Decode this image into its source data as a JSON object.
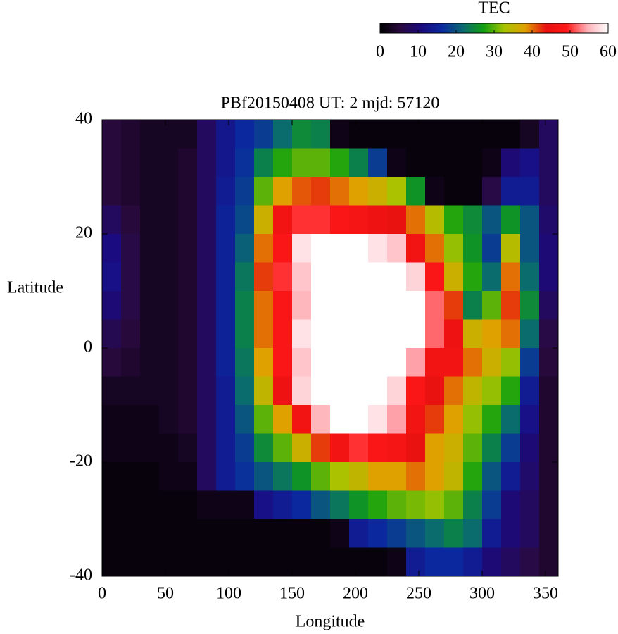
{
  "chart_data": {
    "type": "heatmap",
    "title": "PBf20150408  UT: 2  mjd: 57120",
    "xlabel": "Longitude",
    "ylabel": "Latitude",
    "x": [
      7.5,
      22.5,
      37.5,
      52.5,
      67.5,
      82.5,
      97.5,
      112.5,
      127.5,
      142.5,
      157.5,
      172.5,
      187.5,
      202.5,
      217.5,
      232.5,
      247.5,
      262.5,
      277.5,
      292.5,
      307.5,
      322.5,
      337.5,
      352.5
    ],
    "y": [
      37.5,
      32.5,
      27.5,
      22.5,
      17.5,
      12.5,
      7.5,
      2.5,
      -2.5,
      -7.5,
      -12.5,
      -17.5,
      -22.5,
      -27.5,
      -32.5,
      -37.5
    ],
    "values": [
      [
        5,
        4,
        3,
        3,
        3,
        8,
        13,
        16,
        18,
        22,
        25,
        24,
        2,
        1,
        1,
        1,
        1,
        1,
        1,
        1,
        1,
        1,
        3,
        8
      ],
      [
        5,
        4,
        3,
        3,
        4,
        8,
        13,
        17,
        24,
        28,
        30,
        30,
        28,
        24,
        18,
        2,
        1,
        1,
        1,
        1,
        2,
        10,
        12,
        8
      ],
      [
        5,
        4,
        3,
        3,
        4,
        8,
        14,
        18,
        30,
        38,
        41,
        42,
        40,
        38,
        36,
        33,
        26,
        2,
        1,
        1,
        6,
        14,
        14,
        8
      ],
      [
        8,
        5,
        3,
        3,
        4,
        8,
        15,
        19,
        36,
        46,
        50,
        50,
        48,
        47,
        45,
        44,
        40,
        34,
        28,
        25,
        20,
        26,
        20,
        9
      ],
      [
        11,
        6,
        3,
        3,
        4,
        8,
        15,
        21,
        40,
        48,
        58,
        60,
        60,
        60,
        58,
        56,
        46,
        40,
        32,
        26,
        18,
        34,
        20,
        10
      ],
      [
        12,
        6,
        3,
        3,
        4,
        8,
        15,
        23,
        42,
        50,
        56,
        60,
        60,
        60,
        60,
        60,
        57,
        48,
        36,
        28,
        22,
        40,
        22,
        10
      ],
      [
        10,
        6,
        3,
        3,
        4,
        8,
        15,
        24,
        40,
        48,
        55,
        60,
        60,
        60,
        60,
        60,
        60,
        52,
        42,
        24,
        30,
        42,
        25,
        8
      ],
      [
        7,
        5,
        3,
        3,
        4,
        8,
        15,
        24,
        40,
        48,
        58,
        60,
        60,
        60,
        60,
        60,
        60,
        52,
        45,
        36,
        38,
        40,
        22,
        6
      ],
      [
        5,
        4,
        3,
        3,
        4,
        8,
        15,
        23,
        38,
        48,
        56,
        60,
        60,
        60,
        60,
        60,
        54,
        46,
        46,
        40,
        36,
        32,
        18,
        5
      ],
      [
        3,
        3,
        3,
        3,
        4,
        8,
        14,
        22,
        35,
        45,
        57,
        60,
        60,
        60,
        60,
        57,
        48,
        44,
        40,
        35,
        32,
        28,
        14,
        4
      ],
      [
        2,
        2,
        2,
        3,
        4,
        8,
        14,
        20,
        30,
        38,
        46,
        55,
        60,
        60,
        58,
        54,
        46,
        42,
        38,
        32,
        28,
        22,
        12,
        4
      ],
      [
        2,
        2,
        2,
        2,
        3,
        8,
        14,
        18,
        25,
        30,
        36,
        42,
        46,
        50,
        48,
        47,
        44,
        38,
        36,
        30,
        24,
        18,
        10,
        4
      ],
      [
        1,
        1,
        1,
        2,
        2,
        8,
        14,
        17,
        20,
        23,
        26,
        30,
        33,
        35,
        38,
        38,
        40,
        38,
        35,
        28,
        20,
        14,
        9,
        4
      ],
      [
        1,
        1,
        1,
        1,
        1,
        2,
        2,
        2,
        12,
        14,
        16,
        20,
        23,
        26,
        28,
        30,
        31,
        32,
        30,
        24,
        18,
        10,
        8,
        4
      ],
      [
        1,
        1,
        1,
        1,
        1,
        1,
        1,
        1,
        1,
        1,
        1,
        1,
        2,
        14,
        16,
        18,
        20,
        22,
        24,
        22,
        14,
        10,
        8,
        4
      ],
      [
        1,
        1,
        1,
        1,
        1,
        1,
        1,
        1,
        1,
        1,
        1,
        1,
        1,
        1,
        1,
        2,
        14,
        16,
        16,
        14,
        10,
        8,
        6,
        4
      ]
    ],
    "xlim": [
      0,
      360
    ],
    "ylim": [
      -40,
      40
    ],
    "xticks": [
      0,
      50,
      100,
      150,
      200,
      250,
      300,
      350
    ],
    "yticks": [
      -40,
      -20,
      0,
      20,
      40
    ],
    "colorbar": {
      "label": "TEC",
      "lim": [
        0,
        60
      ],
      "ticks": [
        0,
        10,
        20,
        30,
        40,
        50,
        60
      ],
      "colors": [
        "#000000",
        "#2a0a40",
        "#1a0a80",
        "#0a2aa0",
        "#0a6a70",
        "#10a010",
        "#a8c400",
        "#e0a000",
        "#e81010",
        "#ff1818",
        "#ffb0b8",
        "#ffffff"
      ]
    }
  }
}
